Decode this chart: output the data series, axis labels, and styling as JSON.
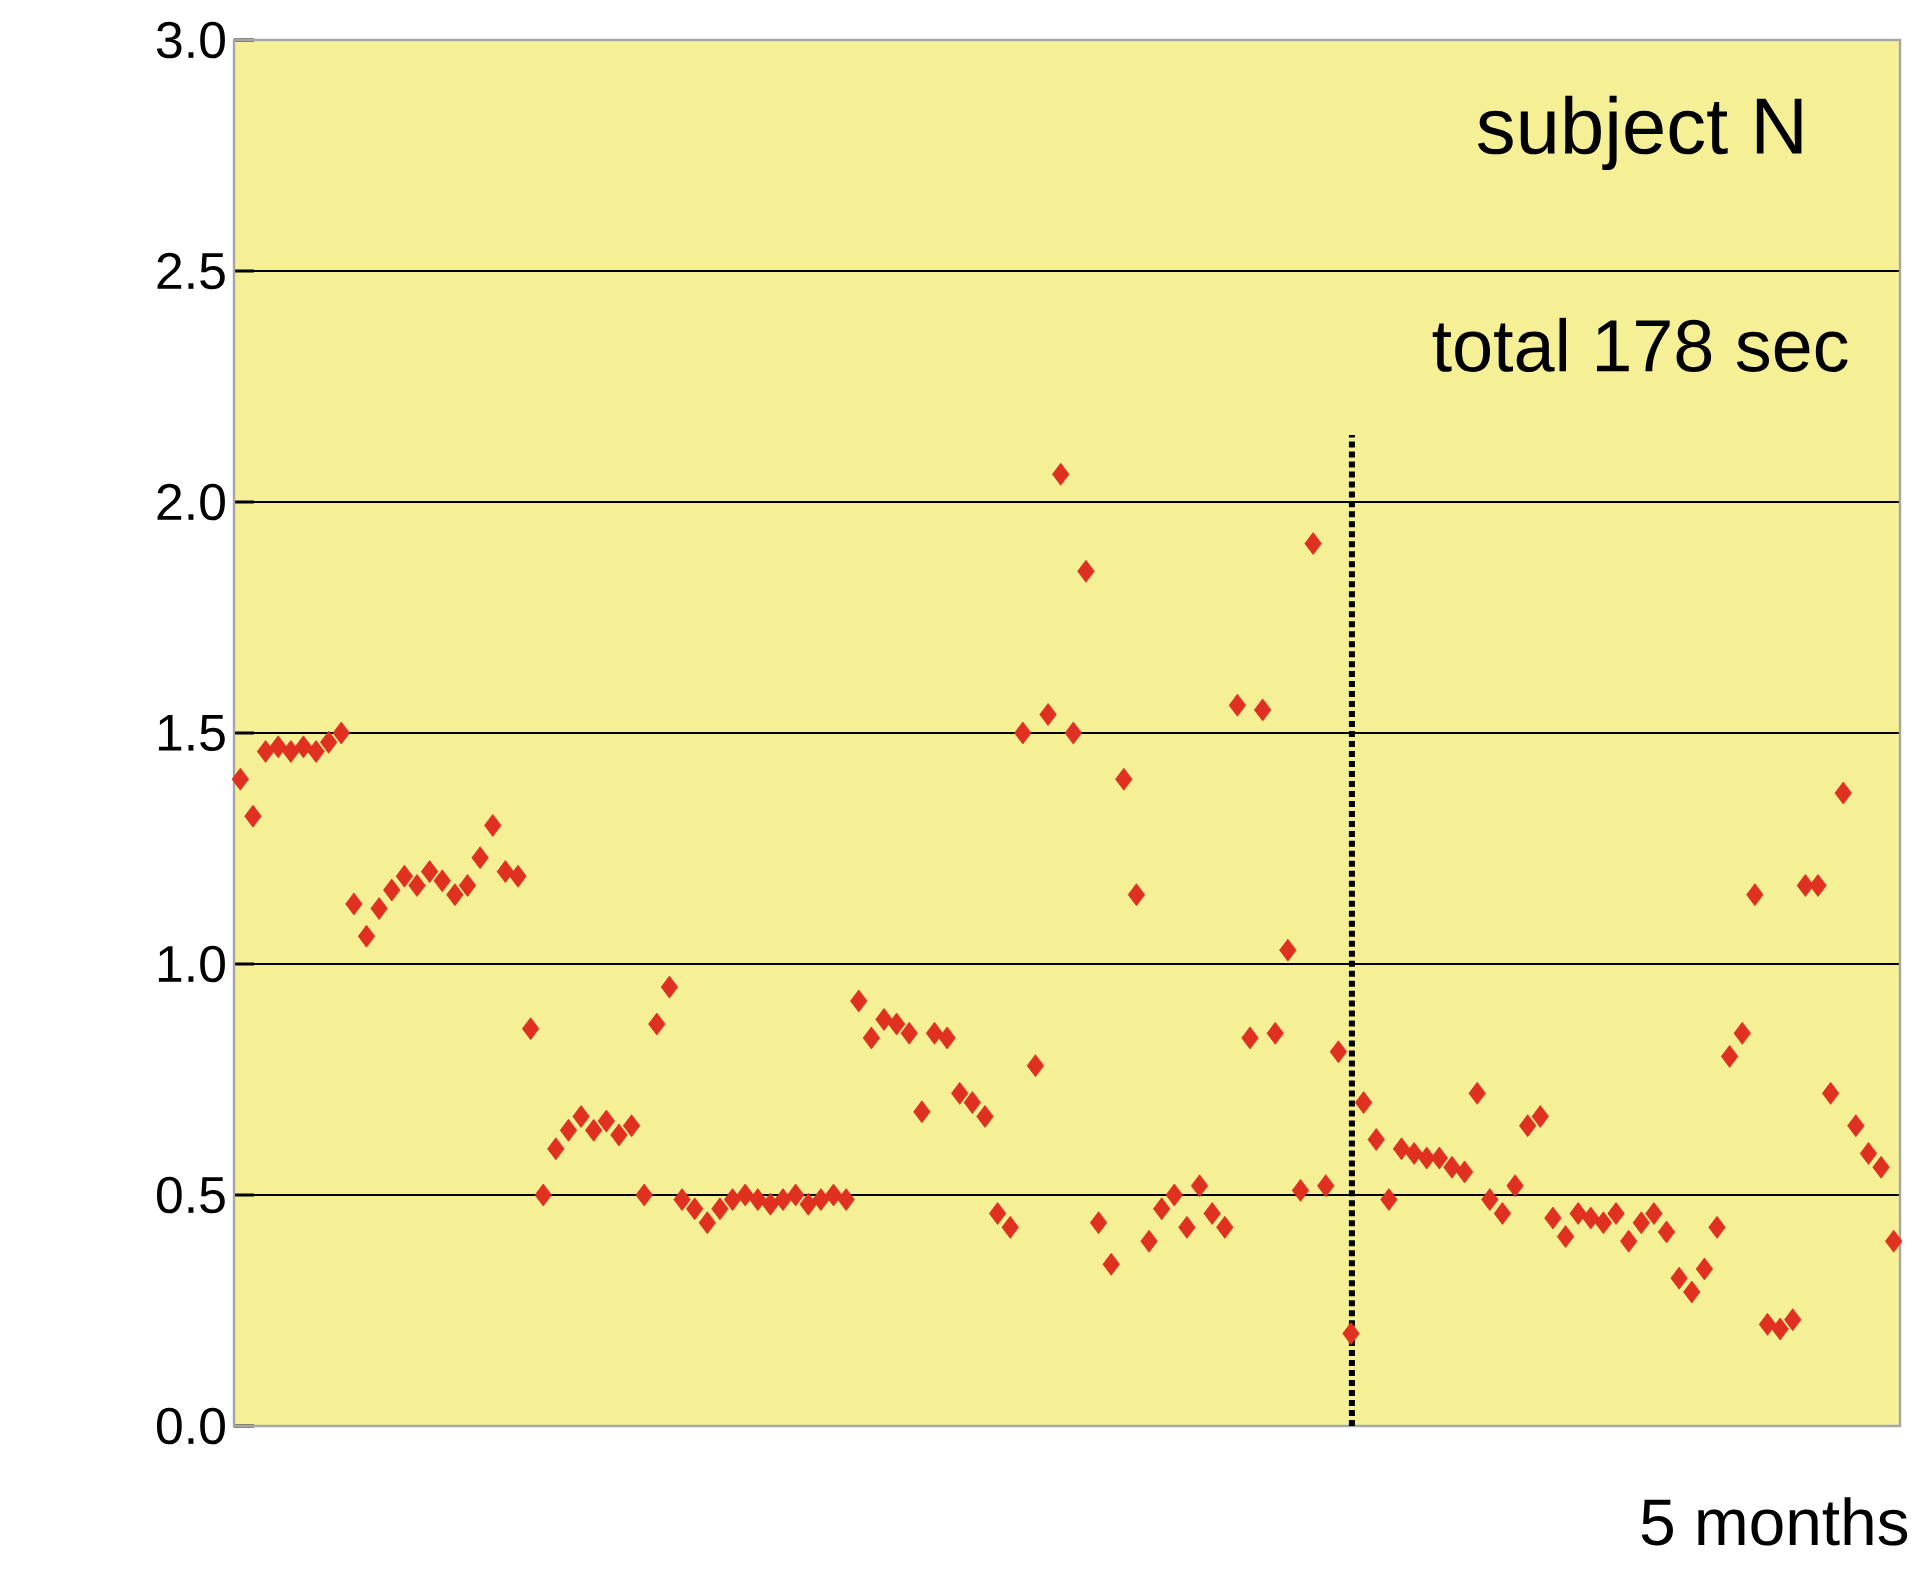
{
  "chart_data": {
    "type": "scatter",
    "categories": [
      null,
      null,
      null,
      null,
      null,
      null,
      null,
      null,
      null,
      null,
      null,
      null,
      null,
      null,
      null,
      null,
      null,
      null,
      null,
      null,
      null,
      null,
      null,
      null,
      null,
      null,
      null,
      null,
      null,
      null,
      null,
      null,
      null,
      null,
      null,
      null,
      null,
      null,
      null,
      null,
      null,
      null,
      null,
      null,
      null,
      null,
      null,
      null,
      null,
      null,
      null,
      null,
      null,
      null,
      null,
      null,
      null,
      null,
      null,
      null,
      null,
      null,
      null,
      null,
      null,
      null,
      null,
      null,
      null,
      null,
      null,
      null,
      null,
      null,
      null,
      null,
      null,
      null,
      null,
      null,
      null,
      null,
      null,
      null,
      null,
      null,
      null,
      null,
      null,
      null,
      null,
      null,
      null,
      null,
      null,
      null,
      null,
      null,
      null,
      null,
      null,
      null,
      null,
      null,
      null,
      null,
      null,
      null,
      null,
      null,
      null,
      null,
      null,
      null,
      null,
      null,
      null,
      null,
      null,
      null,
      null,
      null,
      null,
      null,
      null,
      null,
      null,
      null,
      null,
      null,
      null,
      null
    ],
    "values": [
      1.4,
      1.32,
      1.46,
      1.47,
      1.46,
      1.47,
      1.46,
      1.48,
      1.5,
      1.13,
      1.06,
      1.12,
      1.16,
      1.19,
      1.17,
      1.2,
      1.18,
      1.15,
      1.17,
      1.23,
      1.3,
      1.2,
      1.19,
      0.86,
      0.5,
      0.6,
      0.64,
      0.67,
      0.64,
      0.66,
      0.63,
      0.65,
      0.5,
      0.87,
      0.95,
      0.49,
      0.47,
      0.44,
      0.47,
      0.49,
      0.5,
      0.49,
      0.48,
      0.49,
      0.5,
      0.48,
      0.49,
      0.5,
      0.49,
      0.92,
      0.84,
      0.88,
      0.87,
      0.85,
      0.68,
      0.85,
      0.84,
      0.72,
      0.7,
      0.67,
      0.46,
      0.43,
      1.5,
      0.78,
      1.54,
      2.06,
      1.5,
      1.85,
      0.44,
      0.35,
      1.4,
      1.15,
      0.4,
      0.47,
      0.5,
      0.43,
      0.52,
      0.46,
      0.43,
      1.56,
      0.84,
      1.55,
      0.85,
      1.03,
      0.51,
      1.91,
      0.52,
      0.81,
      0.2,
      0.7,
      0.62,
      0.49,
      0.6,
      0.59,
      0.58,
      0.58,
      0.56,
      0.55,
      0.72,
      0.49,
      0.46,
      0.52,
      0.65,
      0.67,
      0.45,
      0.41,
      0.46,
      0.45,
      0.44,
      0.46,
      0.4,
      0.44,
      0.46,
      0.42,
      0.32,
      0.29,
      0.34,
      0.43,
      0.8,
      0.85,
      1.15,
      0.22,
      0.21,
      0.23,
      1.17,
      1.17,
      0.72,
      1.37,
      0.65,
      0.59,
      0.56,
      0.4
    ],
    "color": "#e0301f",
    "marker": "diamond",
    "xlabel": "5 months",
    "ylim": [
      0,
      3
    ],
    "yticks": [
      {
        "value": 0,
        "label": "0.0"
      },
      {
        "value": 0.5,
        "label": "0.5"
      },
      {
        "value": 1,
        "label": "1.0"
      },
      {
        "value": 1.5,
        "label": "1.5"
      },
      {
        "value": 2,
        "label": "2.0"
      },
      {
        "value": 2.5,
        "label": "2.5"
      },
      {
        "value": 3,
        "label": "3.0"
      }
    ],
    "grid": "y",
    "annotations": [
      "subject N",
      "total 178 sec"
    ]
  }
}
